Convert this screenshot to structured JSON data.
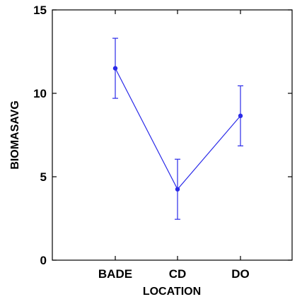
{
  "chart_data": {
    "type": "line",
    "title": "",
    "xlabel": "LOCATION",
    "ylabel": "BIOMASAVG",
    "categories": [
      "BADE",
      "CD",
      "DO"
    ],
    "series": [
      {
        "values": [
          11.5,
          4.25,
          8.65
        ],
        "error_low": [
          9.7,
          2.45,
          6.85
        ],
        "error_high": [
          13.3,
          6.05,
          10.45
        ],
        "color": "#2a2ae8"
      }
    ],
    "ylim": [
      0,
      15
    ],
    "yticks": [
      0,
      5,
      10,
      15
    ],
    "grid": false,
    "legend": "none"
  }
}
